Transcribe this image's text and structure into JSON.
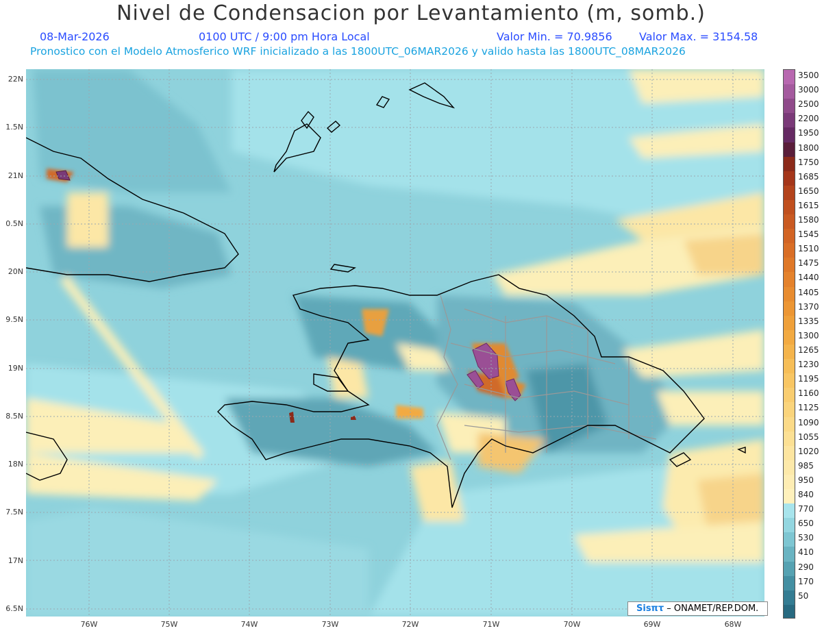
{
  "title": "Nivel de Condensacion por Levantamiento (m, somb.)",
  "date": "08-Mar-2026",
  "time": "0100 UTC / 9:00 pm Hora Local",
  "min_label": "Valor Min. = 70.9856",
  "max_label": "Valor Max. = 3154.58",
  "forecast": "Pronostico con el Modelo Atmosferico WRF inicializado a las 1800UTC_06MAR2026 y valido hasta las  1800UTC_08MAR2026",
  "credit_logo": "Sisπτ",
  "credit_text": " – ONAMET/REP.DOM.",
  "lat_labels": [
    "22N",
    "1.5N",
    "21N",
    "0.5N",
    "20N",
    "9.5N",
    "19N",
    "8.5N",
    "18N",
    "7.5N",
    "17N",
    "6.5N"
  ],
  "lon_labels": [
    "76W",
    "75W",
    "74W",
    "73W",
    "72W",
    "71W",
    "70W",
    "69W",
    "68W"
  ],
  "colorbar": [
    {
      "label": "3500",
      "color": "#b868b0"
    },
    {
      "label": "3000",
      "color": "#a45a9e"
    },
    {
      "label": "2500",
      "color": "#8f4a8a"
    },
    {
      "label": "2200",
      "color": "#7a3a78"
    },
    {
      "label": "1950",
      "color": "#652a63"
    },
    {
      "label": "1800",
      "color": "#5a1e3a"
    },
    {
      "label": "1750",
      "color": "#8b2a1a"
    },
    {
      "label": "1685",
      "color": "#a4361a"
    },
    {
      "label": "1650",
      "color": "#b3431c"
    },
    {
      "label": "1615",
      "color": "#c0501f"
    },
    {
      "label": "1580",
      "color": "#c95a22"
    },
    {
      "label": "1545",
      "color": "#d26424"
    },
    {
      "label": "1510",
      "color": "#d96e26"
    },
    {
      "label": "1475",
      "color": "#df7828"
    },
    {
      "label": "1440",
      "color": "#e4822c"
    },
    {
      "label": "1405",
      "color": "#e88c30"
    },
    {
      "label": "1370",
      "color": "#ec9634"
    },
    {
      "label": "1335",
      "color": "#efa03a"
    },
    {
      "label": "1300",
      "color": "#f2aa42"
    },
    {
      "label": "1265",
      "color": "#f4b44c"
    },
    {
      "label": "1230",
      "color": "#f6be58"
    },
    {
      "label": "1195",
      "color": "#f8c664"
    },
    {
      "label": "1160",
      "color": "#f9cd70"
    },
    {
      "label": "1125",
      "color": "#fad47c"
    },
    {
      "label": "1090",
      "color": "#fbda88"
    },
    {
      "label": "1055",
      "color": "#fce094"
    },
    {
      "label": "1020",
      "color": "#fde5a0"
    },
    {
      "label": "985",
      "color": "#fde9aa"
    },
    {
      "label": "950",
      "color": "#feedb4"
    },
    {
      "label": "840",
      "color": "#fff1bc"
    },
    {
      "label": "770",
      "color": "#a8e4ec"
    },
    {
      "label": "650",
      "color": "#93d6e0"
    },
    {
      "label": "530",
      "color": "#7ec6d2"
    },
    {
      "label": "410",
      "color": "#6ab4c2"
    },
    {
      "label": "290",
      "color": "#56a2b2"
    },
    {
      "label": "170",
      "color": "#448fa2"
    },
    {
      "label": "50",
      "color": "#347c92"
    },
    {
      "label": "",
      "color": "#286a80"
    }
  ]
}
